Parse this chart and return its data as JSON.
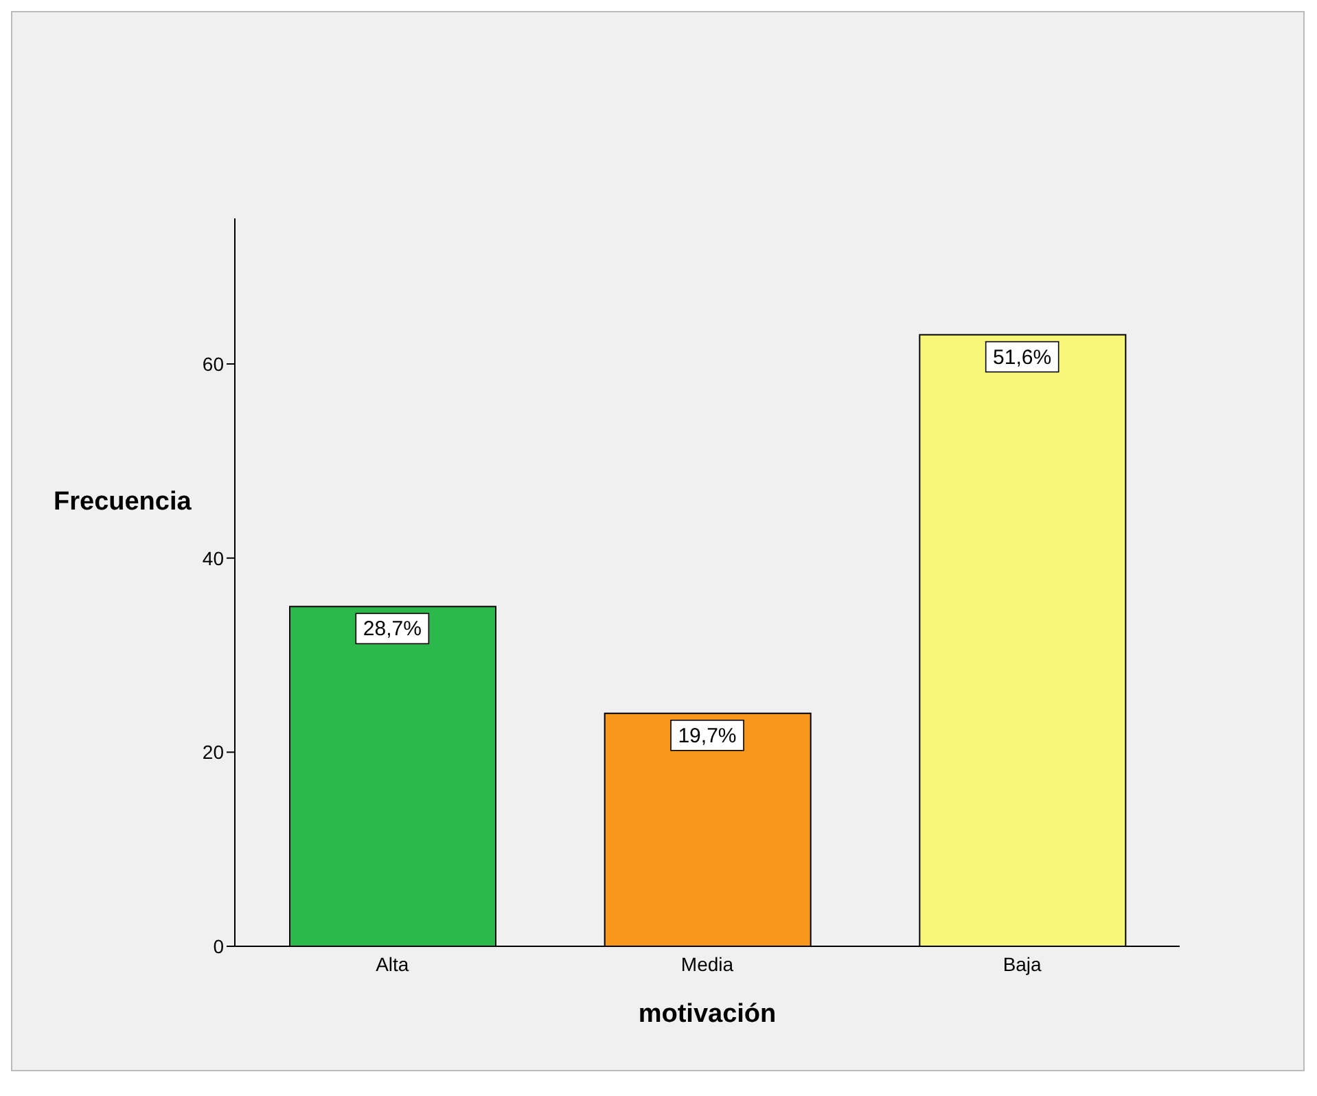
{
  "chart_data": {
    "type": "bar",
    "xlabel": "motivación",
    "ylabel": "Frecuencia",
    "categories": [
      "Alta",
      "Media",
      "Baja"
    ],
    "values": [
      35,
      24,
      63
    ],
    "colors": [
      "#2db84b",
      "#f7981d",
      "#f9f777"
    ],
    "annotations": [
      {
        "text": "28,7%",
        "x": "Alta",
        "y": 35
      },
      {
        "text": "19,7%",
        "x": "Media",
        "y": 24
      },
      {
        "text": "51,6%",
        "x": "Baja",
        "y": 63
      }
    ],
    "ylim": [
      0,
      75
    ],
    "yticks": [
      0,
      20,
      40,
      60
    ],
    "grid": false
  }
}
